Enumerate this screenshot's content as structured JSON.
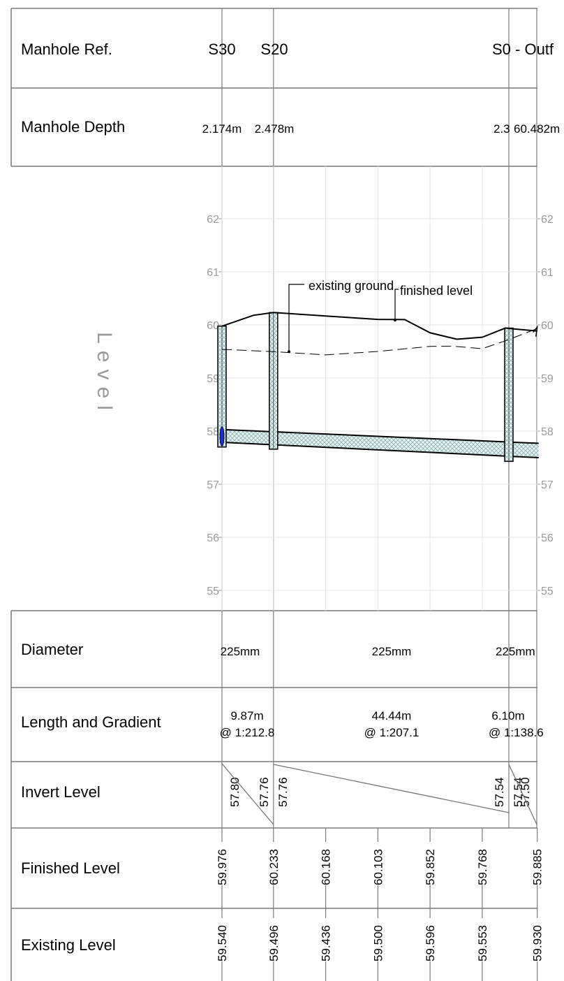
{
  "rows": {
    "manhole_ref": "Manhole Ref.",
    "manhole_depth": "Manhole Depth",
    "diameter": "Diameter",
    "length_gradient": "Length and Gradient",
    "invert_level": "Invert Level",
    "finished_level": "Finished Level",
    "existing_level": "Existing Level"
  },
  "axis_title": "Level",
  "manholes": [
    {
      "ref": "S30",
      "depth": "2.174m"
    },
    {
      "ref": "S20",
      "depth": "2.478m"
    },
    {
      "ref": "S0 - Outf",
      "depth": "2.3"
    }
  ],
  "outfall_depth": "60.482m",
  "pipes": [
    {
      "diameter": "225mm",
      "length": "9.87m",
      "gradient": "@ 1:212.8"
    },
    {
      "diameter": "225mm",
      "length": "44.44m",
      "gradient": "@ 1:207.1"
    },
    {
      "diameter": "225mm",
      "length": "6.10m",
      "gradient": "@ 1:138.6"
    }
  ],
  "inverts": [
    "57.80",
    "57.76",
    "57.76",
    "57.54",
    "57.54",
    "57.50"
  ],
  "annotations": {
    "existing": "existing ground",
    "finished": "finished level"
  },
  "chart_data": {
    "type": "line",
    "title": "",
    "ylabel": "Level",
    "ylim": [
      55,
      62
    ],
    "yticks": [
      "62",
      "61",
      "60",
      "59",
      "58",
      "57",
      "56",
      "55"
    ],
    "chainages": [
      0,
      9.87,
      19.87,
      29.87,
      39.87,
      49.87,
      60.41
    ],
    "finished_levels": [
      "59.976",
      "60.233",
      "60.168",
      "60.103",
      "59.852",
      "59.768",
      "59.885"
    ],
    "existing_levels": [
      "59.540",
      "59.496",
      "59.436",
      "59.500",
      "59.596",
      "59.553",
      "59.930"
    ],
    "series": [
      {
        "name": "finished level",
        "x": [
          0,
          6,
          9.87,
          19.87,
          29.87,
          35,
          39.87,
          45,
          49.87,
          54.3,
          57,
          60.41
        ],
        "y": [
          59.976,
          60.18,
          60.233,
          60.168,
          60.103,
          60.1,
          59.852,
          59.73,
          59.768,
          59.94,
          59.915,
          59.885
        ]
      },
      {
        "name": "existing ground",
        "x": [
          0,
          9.87,
          19.87,
          29.87,
          39.87,
          44,
          49.87,
          54.3,
          60.41
        ],
        "y": [
          59.54,
          59.496,
          59.436,
          59.5,
          59.596,
          59.6,
          59.553,
          59.7,
          59.93
        ]
      }
    ]
  }
}
